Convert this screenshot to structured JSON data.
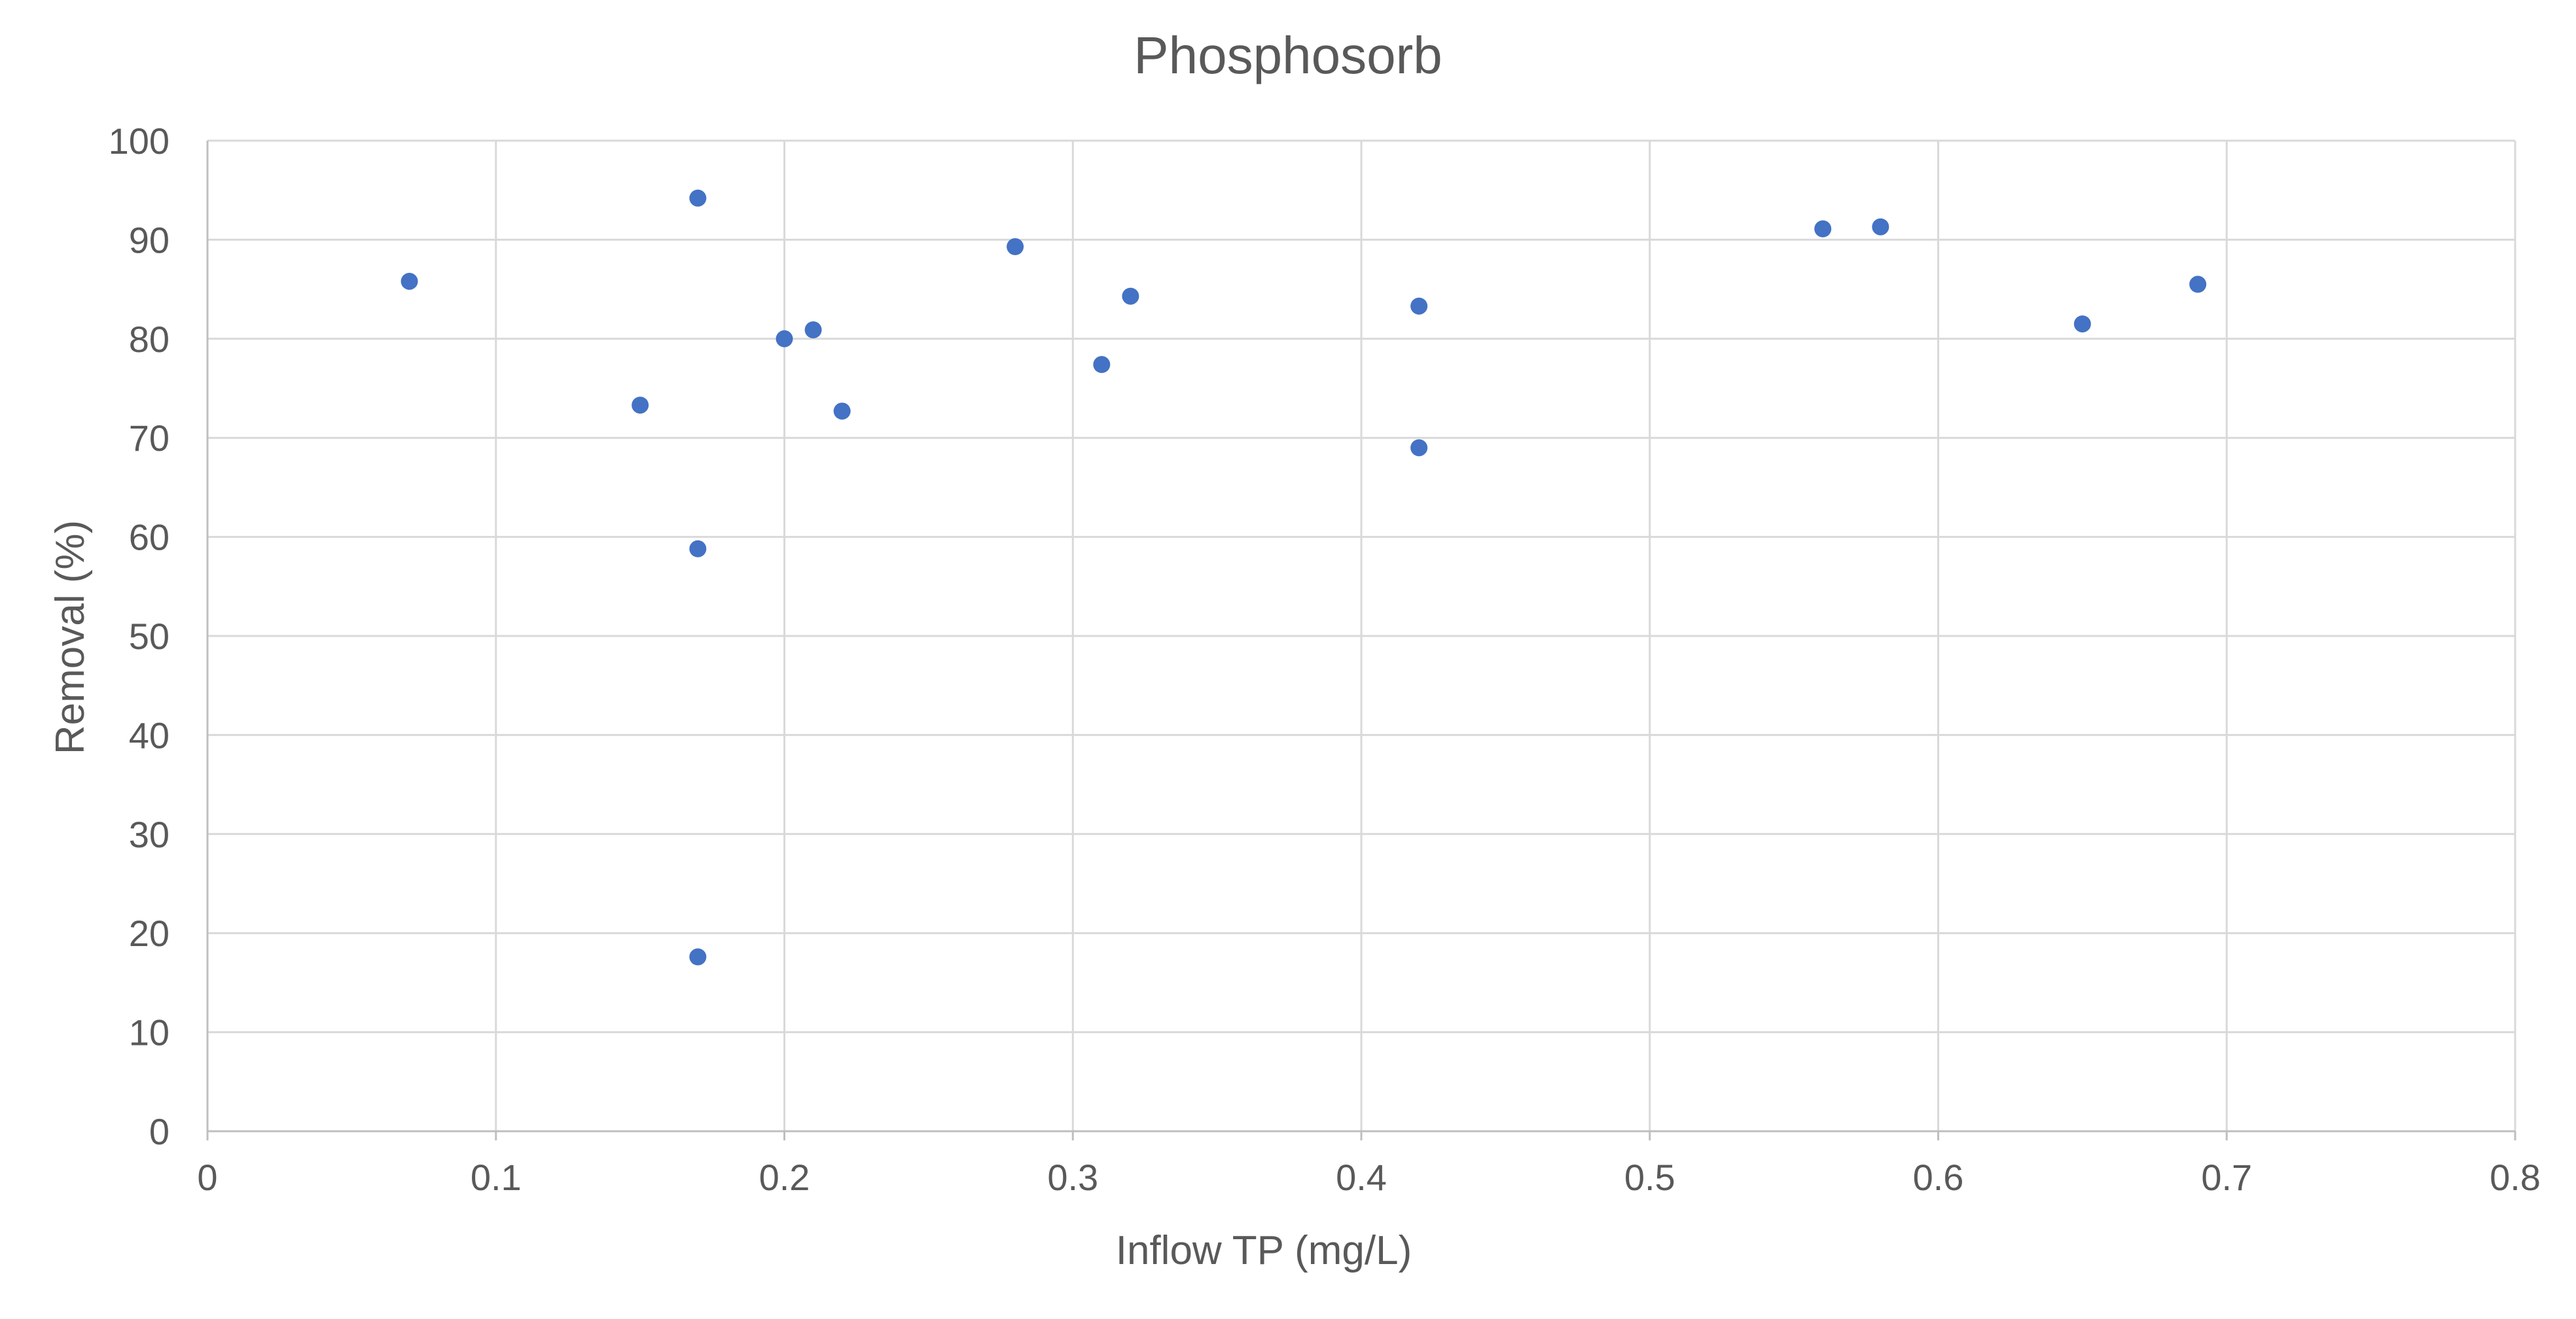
{
  "chart_data": {
    "type": "scatter",
    "title": "Phosphosorb",
    "xlabel": "Inflow TP (mg/L)",
    "ylabel": "Removal (%)",
    "xlim": [
      0,
      0.8
    ],
    "ylim": [
      0,
      100
    ],
    "xticks": [
      0,
      0.1,
      0.2,
      0.3,
      0.4,
      0.5,
      0.6,
      0.7,
      0.8
    ],
    "yticks": [
      0,
      10,
      20,
      30,
      40,
      50,
      60,
      70,
      80,
      90,
      100
    ],
    "xtick_labels": [
      "0",
      "0.1",
      "0.2",
      "0.3",
      "0.4",
      "0.5",
      "0.6",
      "0.7",
      "0.8"
    ],
    "ytick_labels": [
      "0",
      "10",
      "20",
      "30",
      "40",
      "50",
      "60",
      "70",
      "80",
      "90",
      "100"
    ],
    "grid": true,
    "legend": "none",
    "marker_color": "#4472C4",
    "series": [
      {
        "x": [
          0.07,
          0.15,
          0.17,
          0.17,
          0.17,
          0.2,
          0.21,
          0.22,
          0.28,
          0.31,
          0.32,
          0.42,
          0.42,
          0.56,
          0.58,
          0.65,
          0.69
        ],
        "y": [
          85.8,
          73.3,
          94.2,
          58.8,
          17.6,
          80.0,
          80.9,
          72.7,
          89.3,
          77.4,
          84.3,
          83.3,
          69.0,
          91.1,
          91.3,
          81.5,
          85.5
        ]
      }
    ]
  }
}
